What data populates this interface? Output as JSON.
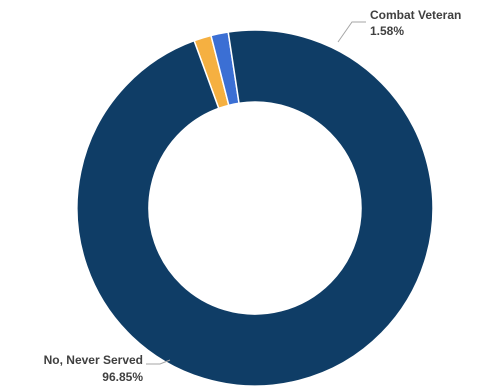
{
  "chart_data": {
    "type": "pie",
    "variant": "donut",
    "title": "",
    "legend": "none",
    "slices": [
      {
        "label": "Combat Veteran",
        "value": 1.58,
        "value_label": "1.58%",
        "color": "#f5b041",
        "show_label": true
      },
      {
        "label": "",
        "value": 1.57,
        "value_label": "",
        "color": "#3b6fd4",
        "show_label": false
      },
      {
        "label": "No, Never Served",
        "value": 96.85,
        "value_label": "96.85%",
        "color": "#0f3d66",
        "show_label": true
      }
    ]
  }
}
